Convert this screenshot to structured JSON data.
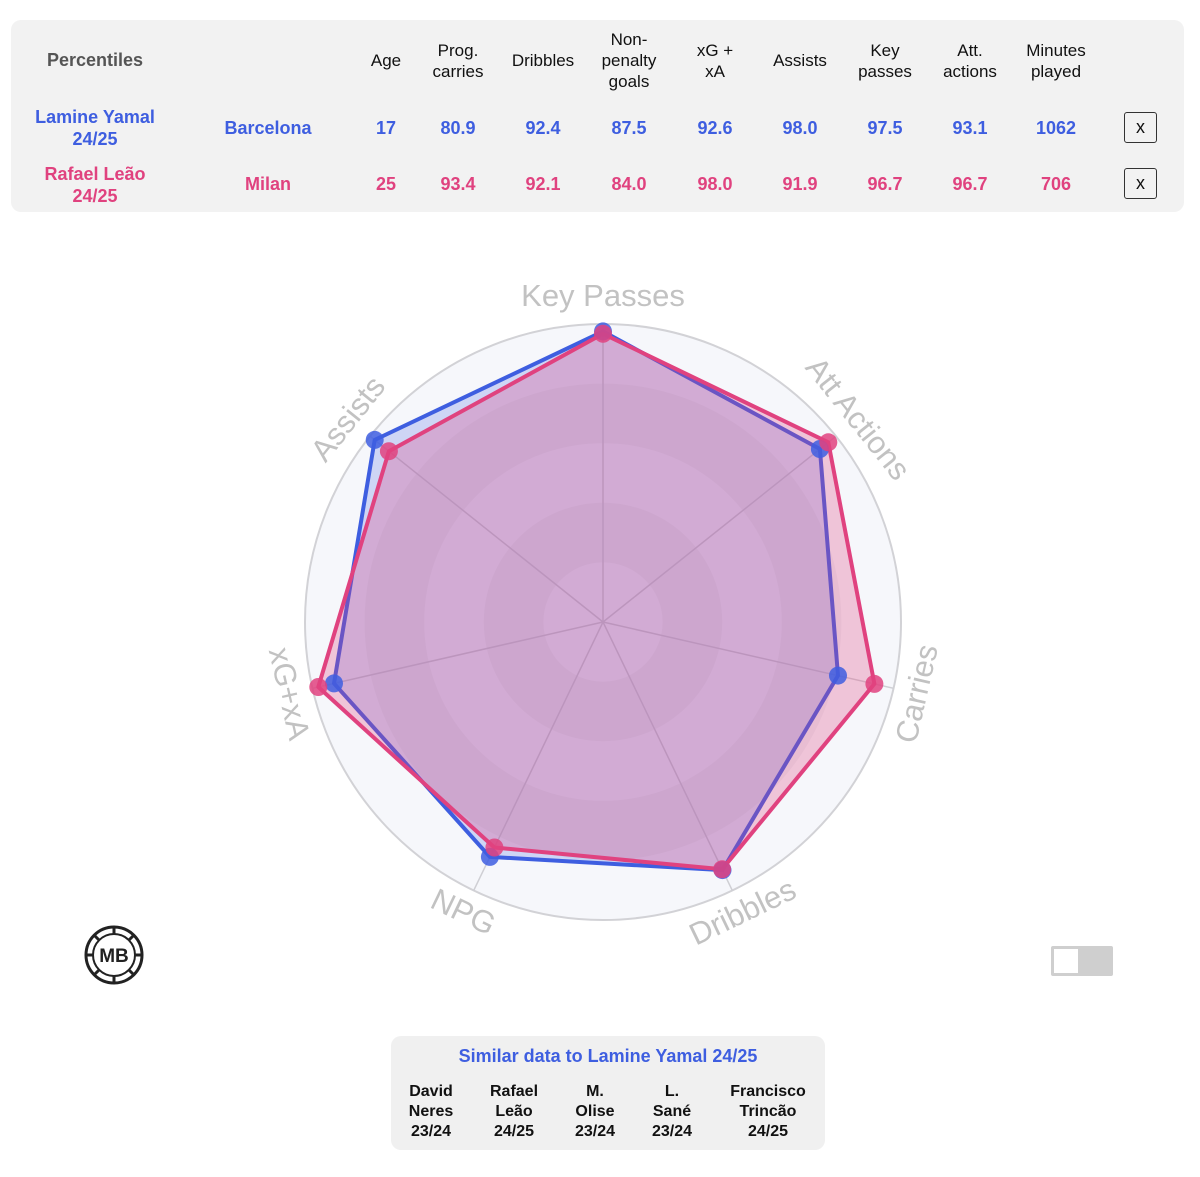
{
  "table": {
    "headers": [
      "Percentiles",
      "",
      "Age",
      "Prog.\ncarries",
      "Dribbles",
      "Non-\npenalty\ngoals",
      "xG +\nxA",
      "Assists",
      "Key\npasses",
      "Att.\nactions",
      "Minutes\nplayed"
    ],
    "rows": [
      {
        "player": "Lamine Yamal\n24/25",
        "team": "Barcelona",
        "values": [
          "17",
          "80.9",
          "92.4",
          "87.5",
          "92.6",
          "98.0",
          "97.5",
          "93.1",
          "1062"
        ],
        "remove_label": "x"
      },
      {
        "player": "Rafael Leão\n24/25",
        "team": "Milan",
        "values": [
          "25",
          "93.4",
          "92.1",
          "84.0",
          "98.0",
          "91.9",
          "96.7",
          "96.7",
          "706"
        ],
        "remove_label": "x"
      }
    ]
  },
  "chart_data": {
    "type": "radar",
    "axes": [
      "Key Passes",
      "Att Actions",
      "Carries",
      "Dribbles",
      "NPG",
      "xG+xA",
      "Assists"
    ],
    "range": [
      0,
      100
    ],
    "series": [
      {
        "name": "Lamine Yamal 24/25",
        "color": "#3e5ee0",
        "values": [
          97.5,
          93.1,
          80.9,
          92.4,
          87.5,
          92.6,
          98.0
        ]
      },
      {
        "name": "Rafael Leão 24/25",
        "color": "#e0427f",
        "values": [
          96.7,
          96.7,
          93.4,
          92.1,
          84.0,
          98.0,
          91.9
        ]
      }
    ]
  },
  "logo": {
    "text": "MB"
  },
  "similar": {
    "title": "Similar data to Lamine Yamal 24/25",
    "items": [
      "David\nNeres\n23/24",
      "Rafael\nLeão\n24/25",
      "M.\nOlise\n23/24",
      "L.\nSané\n23/24",
      "Francisco\nTrincão\n24/25"
    ]
  }
}
